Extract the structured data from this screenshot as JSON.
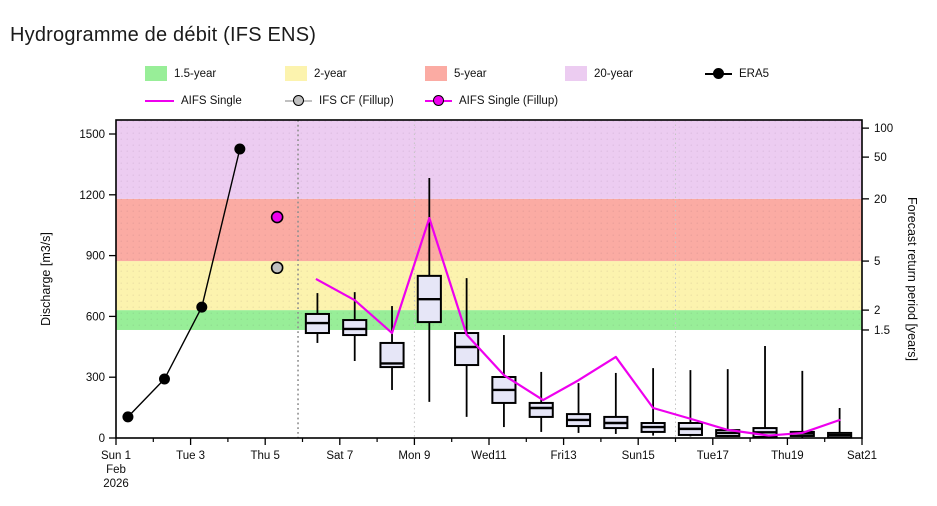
{
  "title": "Hydrogramme de débit (IFS ENS)",
  "legend": {
    "row1": [
      {
        "label": "1.5-year",
        "type": "band",
        "color": "#98ee98"
      },
      {
        "label": "2-year",
        "type": "band",
        "color": "#fcf3ae"
      },
      {
        "label": "5-year",
        "type": "band",
        "color": "#fbaba3"
      },
      {
        "label": "20-year",
        "type": "band",
        "color": "#ecccf1"
      },
      {
        "label": "ERA5",
        "type": "dotline",
        "color": "#000000"
      }
    ],
    "row2": [
      {
        "label": "AIFS Single",
        "type": "line",
        "color": "#ee00ee"
      },
      {
        "label": "IFS CF (Fillup)",
        "type": "dotline",
        "color": "#c0c0c0"
      },
      {
        "label": "AIFS Single (Fillup)",
        "type": "dotline",
        "color": "#ee00ee"
      }
    ]
  },
  "chart_data": {
    "type": "box",
    "title": "Hydrogramme de débit (IFS ENS)",
    "xlabel": "",
    "ylabel": "Discharge [m3/s]",
    "y2label": "Forecast return period [years]",
    "ylim": [
      0,
      1569
    ],
    "xlim_days": [
      0,
      20
    ],
    "x_start_label": "Sun 1 Feb 2026",
    "x_axis": {
      "major_ticks": [
        {
          "day": 0,
          "lines": [
            "Sun 1",
            "Feb",
            "2026"
          ]
        },
        {
          "day": 2,
          "lines": [
            "Tue 3"
          ]
        },
        {
          "day": 4,
          "lines": [
            "Thu 5"
          ]
        },
        {
          "day": 6,
          "lines": [
            "Sat 7"
          ]
        },
        {
          "day": 8,
          "lines": [
            "Mon 9"
          ]
        },
        {
          "day": 10,
          "lines": [
            "Wed11"
          ]
        },
        {
          "day": 12,
          "lines": [
            "Fri13"
          ]
        },
        {
          "day": 14,
          "lines": [
            "Sun15"
          ]
        },
        {
          "day": 16,
          "lines": [
            "Tue17"
          ]
        },
        {
          "day": 18,
          "lines": [
            "Thu19"
          ]
        },
        {
          "day": 20,
          "lines": [
            "Sat21"
          ]
        }
      ],
      "minor_tick_days": [
        1,
        3,
        5,
        7,
        9,
        11,
        13,
        15,
        17,
        19
      ]
    },
    "y_axis": {
      "ticks": [
        0,
        300,
        600,
        900,
        1200,
        1500
      ]
    },
    "y2_axis": {
      "ticks": [
        {
          "label": "1.5",
          "discharge": 533
        },
        {
          "label": "2",
          "discharge": 631
        },
        {
          "label": "5",
          "discharge": 873
        },
        {
          "label": "20",
          "discharge": 1180
        },
        {
          "label": "50",
          "discharge": 1386
        },
        {
          "label": "100",
          "discharge": 1529
        }
      ]
    },
    "bands": [
      {
        "name": "1.5-year",
        "from": 533,
        "to": 631,
        "color": "#98ee98"
      },
      {
        "name": "2-year",
        "from": 631,
        "to": 873,
        "color": "#fcf3ae"
      },
      {
        "name": "5-year",
        "from": 873,
        "to": 1180,
        "color": "#fbaba3"
      },
      {
        "name": "20-year",
        "from": 1180,
        "to": 1569,
        "color": "#ecccf1"
      }
    ],
    "gridlines_days": [
      8,
      15
    ],
    "forecast_start_day": 4.88,
    "series": {
      "era5": {
        "name": "ERA5",
        "color": "#000000",
        "points": [
          [
            0.32,
            104
          ],
          [
            1.3,
            291
          ],
          [
            2.3,
            646
          ],
          [
            3.32,
            1426
          ]
        ]
      },
      "aifs_single": {
        "name": "AIFS Single",
        "color": "#ee00ee",
        "points": [
          [
            5.36,
            785
          ],
          [
            6.4,
            680
          ],
          [
            7.4,
            518
          ],
          [
            8.4,
            1085
          ],
          [
            9.4,
            510
          ],
          [
            10.4,
            310
          ],
          [
            11.45,
            187
          ],
          [
            12.4,
            285
          ],
          [
            13.4,
            400
          ],
          [
            14.4,
            148
          ],
          [
            15.4,
            95
          ],
          [
            16.4,
            40
          ],
          [
            17.5,
            12
          ],
          [
            18.4,
            25
          ],
          [
            19.42,
            90
          ]
        ]
      },
      "ifs_cf_fillup": {
        "name": "IFS CF (Fillup)",
        "color": "#c0c0c0",
        "point": {
          "day": 4.32,
          "value": 840
        }
      },
      "aifs_single_fillup": {
        "name": "AIFS Single (Fillup)",
        "color": "#ee00ee",
        "point": {
          "day": 4.32,
          "value": 1090
        }
      }
    },
    "boxes": {
      "name": "IFS ENS",
      "fill": "#e6e6f7",
      "width_days": 0.62,
      "items": [
        {
          "day": 5.4,
          "whisker_low": 469,
          "q1": 518,
          "median": 567,
          "q3": 612,
          "whisker_high": 715
        },
        {
          "day": 6.4,
          "whisker_low": 380,
          "q1": 508,
          "median": 538,
          "q3": 582,
          "whisker_high": 720
        },
        {
          "day": 7.4,
          "whisker_low": 237,
          "q1": 350,
          "median": 368,
          "q3": 469,
          "whisker_high": 651
        },
        {
          "day": 8.4,
          "whisker_low": 178,
          "q1": 572,
          "median": 685,
          "q3": 800,
          "whisker_high": 1283
        },
        {
          "day": 9.4,
          "whisker_low": 104,
          "q1": 360,
          "median": 449,
          "q3": 518,
          "whisker_high": 789
        },
        {
          "day": 10.4,
          "whisker_low": 54,
          "q1": 173,
          "median": 237,
          "q3": 301,
          "whisker_high": 508
        },
        {
          "day": 11.4,
          "whisker_low": 30,
          "q1": 104,
          "median": 148,
          "q3": 173,
          "whisker_high": 326
        },
        {
          "day": 12.4,
          "whisker_low": 25,
          "q1": 59,
          "median": 89,
          "q3": 118,
          "whisker_high": 271
        },
        {
          "day": 13.4,
          "whisker_low": 20,
          "q1": 49,
          "median": 74,
          "q3": 104,
          "whisker_high": 321
        },
        {
          "day": 14.4,
          "whisker_low": 12,
          "q1": 30,
          "median": 54,
          "q3": 74,
          "whisker_high": 345
        },
        {
          "day": 15.4,
          "whisker_low": 8,
          "q1": 15,
          "median": 45,
          "q3": 74,
          "whisker_high": 335
        },
        {
          "day": 16.4,
          "whisker_low": 5,
          "q1": 10,
          "median": 25,
          "q3": 39,
          "whisker_high": 340
        },
        {
          "day": 17.4,
          "whisker_low": 2,
          "q1": 5,
          "median": 28,
          "q3": 49,
          "whisker_high": 454
        },
        {
          "day": 18.4,
          "whisker_low": 2,
          "q1": 10,
          "median": 22,
          "q3": 30,
          "whisker_high": 331
        },
        {
          "day": 19.4,
          "whisker_low": 0,
          "q1": 2,
          "median": 14,
          "q3": 25,
          "whisker_high": 148
        }
      ]
    }
  }
}
